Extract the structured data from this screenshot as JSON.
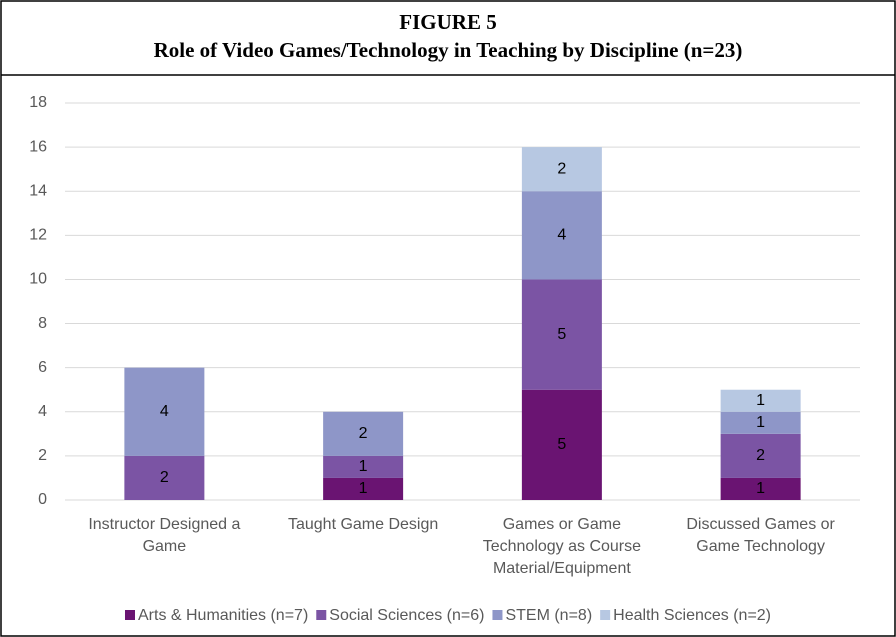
{
  "chart_data": {
    "type": "bar",
    "stacked": true,
    "title": "FIGURE 5",
    "subtitle": "Role of Video Games/Technology in Teaching by Discipline (n=23)",
    "categories": [
      "Instructor Designed a Game",
      "Taught Game Design",
      "Games or Game Technology as Course Material/Equipment",
      "Discussed Games or Game Technology"
    ],
    "series": [
      {
        "name": "Arts & Humanities (n=7)",
        "color": "#6a1472",
        "values": [
          0,
          1,
          5,
          1
        ]
      },
      {
        "name": "Social Sciences (n=6)",
        "color": "#7b54a4",
        "values": [
          2,
          1,
          5,
          2
        ]
      },
      {
        "name": "STEM (n=8)",
        "color": "#8e96c8",
        "values": [
          4,
          2,
          4,
          1
        ]
      },
      {
        "name": "Health Sciences (n=2)",
        "color": "#b7c8e2",
        "values": [
          0,
          0,
          2,
          1
        ]
      }
    ],
    "ylim": [
      0,
      18
    ],
    "yticks": [
      0,
      2,
      4,
      6,
      8,
      10,
      12,
      14,
      16,
      18
    ],
    "grid": true,
    "legend": "bottom"
  }
}
